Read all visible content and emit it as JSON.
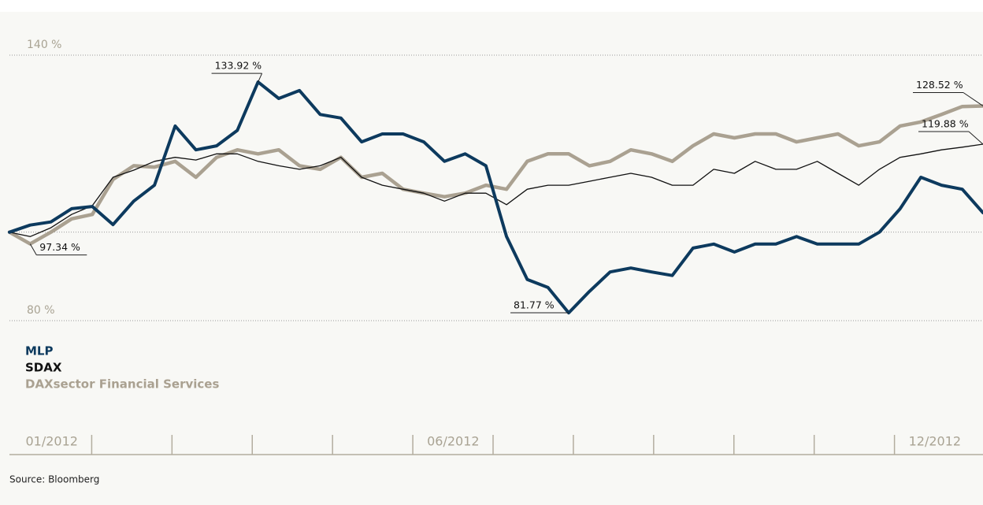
{
  "chart_data": {
    "type": "line",
    "categories": [
      "01/2012",
      null,
      null,
      null,
      null,
      null,
      null,
      null,
      null,
      null,
      null,
      null,
      null,
      null,
      null,
      null,
      null,
      null,
      null,
      null,
      "06/2012",
      null,
      null,
      null,
      null,
      null,
      null,
      null,
      null,
      null,
      null,
      null,
      null,
      null,
      null,
      null,
      null,
      null,
      null,
      null,
      null,
      null,
      null,
      null,
      "12/2012",
      null,
      null,
      null
    ],
    "ylim": [
      80,
      140
    ],
    "yticks": [
      {
        "value": 80,
        "label": "80 %"
      },
      {
        "value": 100,
        "label": null
      },
      {
        "value": 140,
        "label": "140 %"
      }
    ],
    "grid": true,
    "series": [
      {
        "name": "MLP",
        "color": "#0d3a5e",
        "values": [
          100,
          101.6,
          102.3,
          105.3,
          105.8,
          101.7,
          107,
          110.6,
          124,
          118.6,
          119.5,
          123,
          133.92,
          130.2,
          132,
          126.6,
          125.8,
          120.4,
          122.2,
          122.2,
          120.4,
          116,
          117.7,
          115,
          99,
          89.3,
          87.5,
          81.77,
          86.6,
          91,
          91.9,
          91,
          90.2,
          96.4,
          97.3,
          95.5,
          97.3,
          97.3,
          99,
          97.3,
          97.3,
          97.3,
          100,
          105.3,
          112.4,
          110.6,
          109.7,
          104.4
        ],
        "value_labels": [
          null,
          null,
          null,
          null,
          null,
          null,
          null,
          null,
          null,
          null,
          null,
          null,
          "133.92 %",
          null,
          null,
          null,
          null,
          null,
          null,
          null,
          null,
          null,
          null,
          null,
          null,
          null,
          null,
          "81.77 %",
          null,
          null,
          null,
          null,
          null,
          null,
          null,
          null,
          null,
          null,
          null,
          null,
          null,
          null,
          null,
          null,
          null,
          null,
          null,
          null
        ]
      },
      {
        "name": "SDAX",
        "color": "#111111",
        "values": [
          100,
          99,
          101,
          104,
          106,
          112.4,
          114,
          116,
          116.9,
          116.3,
          117.7,
          117.7,
          116,
          115,
          114.2,
          115,
          116.9,
          112.4,
          110.6,
          109.7,
          108.8,
          107,
          108.8,
          108.8,
          106.2,
          109.7,
          110.6,
          110.6,
          111.5,
          112.4,
          113.3,
          112.4,
          110.6,
          110.6,
          114.2,
          113.3,
          116,
          114.2,
          114.2,
          116,
          113.3,
          110.6,
          114.2,
          116.9,
          117.7,
          118.6,
          119.2,
          119.88
        ],
        "value_labels": [
          null,
          null,
          null,
          null,
          null,
          null,
          null,
          null,
          null,
          null,
          null,
          null,
          null,
          null,
          null,
          null,
          null,
          null,
          null,
          null,
          null,
          null,
          null,
          null,
          null,
          null,
          null,
          null,
          null,
          null,
          null,
          null,
          null,
          null,
          null,
          null,
          null,
          null,
          null,
          null,
          null,
          null,
          null,
          null,
          null,
          null,
          null,
          "119.88 %"
        ]
      },
      {
        "name": "DAXsector Financial Services",
        "color": "#aaa191",
        "values": [
          100,
          97.34,
          100,
          103,
          104,
          111.9,
          115,
          114.7,
          116,
          112.4,
          116.9,
          118.6,
          117.7,
          118.6,
          115,
          114.2,
          116.9,
          112.4,
          113.3,
          109.7,
          108.8,
          108,
          108.8,
          110.6,
          109.7,
          116,
          117.7,
          117.7,
          115,
          116,
          118.6,
          117.7,
          116,
          119.5,
          122.2,
          121.3,
          122.2,
          122.2,
          120.4,
          121.3,
          122.2,
          119.5,
          120.4,
          124,
          124.9,
          126.6,
          128.4,
          128.52
        ],
        "value_labels": [
          null,
          "97.34 %",
          null,
          null,
          null,
          null,
          null,
          null,
          null,
          null,
          null,
          null,
          null,
          null,
          null,
          null,
          null,
          null,
          null,
          null,
          null,
          null,
          null,
          null,
          null,
          null,
          null,
          null,
          null,
          null,
          null,
          null,
          null,
          null,
          null,
          null,
          null,
          null,
          null,
          null,
          null,
          null,
          null,
          null,
          null,
          null,
          null,
          "128.52 %"
        ]
      }
    ],
    "source": "Source: Bloomberg"
  }
}
